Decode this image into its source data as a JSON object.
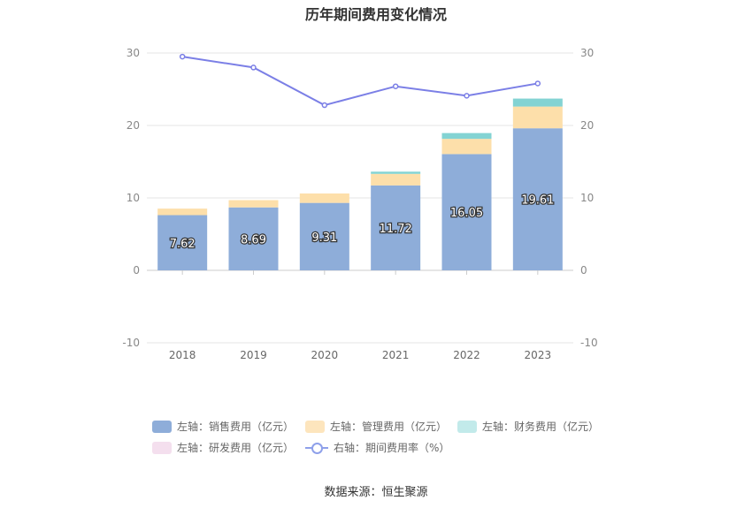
{
  "chart_data": {
    "type": "bar",
    "title": "历年期间费用变化情况",
    "categories": [
      "2018",
      "2019",
      "2020",
      "2021",
      "2022",
      "2023"
    ],
    "left_axis": {
      "min": -10,
      "max": 30,
      "ticks": [
        -10,
        0,
        10,
        20,
        30
      ]
    },
    "right_axis": {
      "min": -10,
      "max": 30,
      "ticks": [
        -10,
        0,
        10,
        20,
        30
      ]
    },
    "series": [
      {
        "name": "左轴：销售费用（亿元）",
        "type": "bar",
        "stack": "left",
        "color": "#8eadd9",
        "values": [
          7.62,
          8.69,
          9.31,
          11.72,
          16.05,
          19.61
        ],
        "labels": [
          "7.62",
          "8.69",
          "9.31",
          "11.72",
          "16.05",
          "19.61"
        ]
      },
      {
        "name": "左轴：管理费用（亿元）",
        "type": "bar",
        "stack": "left",
        "color": "#fddfaa",
        "values": [
          0.9,
          1.0,
          1.3,
          1.6,
          2.1,
          3.0
        ]
      },
      {
        "name": "左轴：财务费用（亿元）",
        "type": "bar",
        "stack": "left",
        "color": "#83d3d3",
        "values": [
          0.0,
          0.0,
          0.0,
          0.3,
          0.8,
          1.1
        ]
      },
      {
        "name": "左轴：研发费用（亿元）",
        "type": "bar",
        "stack": "left",
        "color": "#f2d5ea",
        "values": [
          0,
          0,
          0,
          0,
          0,
          0
        ]
      },
      {
        "name": "右轴：期间费用率（%）",
        "type": "line",
        "axis": "right",
        "color": "#7b7fe6",
        "values": [
          29.5,
          28.0,
          22.8,
          25.4,
          24.1,
          25.8
        ]
      }
    ],
    "legend_position": "bottom",
    "grid": true
  },
  "legend": [
    {
      "label": "左轴：销售费用（亿元）",
      "color": "#8eadd9",
      "kind": "box"
    },
    {
      "label": "左轴：管理费用（亿元）",
      "color": "#fde5bd",
      "kind": "box"
    },
    {
      "label": "左轴：财务费用（亿元）",
      "color": "#c2eaea",
      "kind": "box"
    },
    {
      "label": "左轴：研发费用（亿元）",
      "color": "#f4dfee",
      "kind": "box"
    },
    {
      "label": "右轴：期间费用率（%）",
      "color": "#8ea0ea",
      "kind": "line"
    }
  ],
  "source": "数据来源：恒生聚源"
}
